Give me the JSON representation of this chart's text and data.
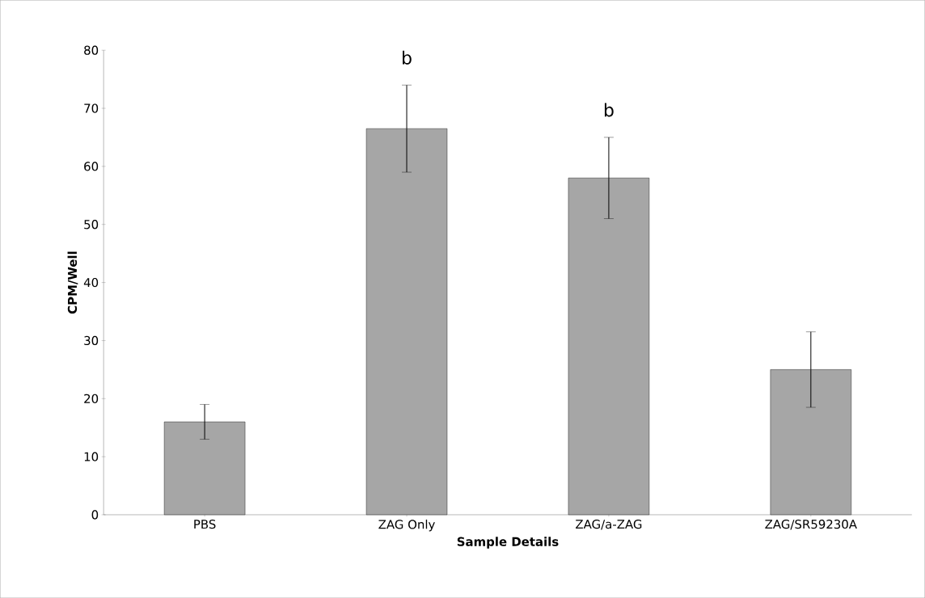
{
  "chart_data": {
    "type": "bar",
    "xlabel": "Sample Details",
    "ylabel": "CPM/Well",
    "categories": [
      "PBS",
      "ZAG Only",
      "ZAG/a-ZAG",
      "ZAG/SR59230A"
    ],
    "values": [
      16,
      66.5,
      58,
      25
    ],
    "errors": [
      3,
      7.5,
      7,
      6.5
    ],
    "color": "#a6a6a6",
    "ylim": [
      0,
      80
    ],
    "yticks": [
      0,
      10,
      20,
      30,
      40,
      50,
      60,
      70,
      80
    ],
    "annotations": [
      "b",
      "b"
    ]
  }
}
